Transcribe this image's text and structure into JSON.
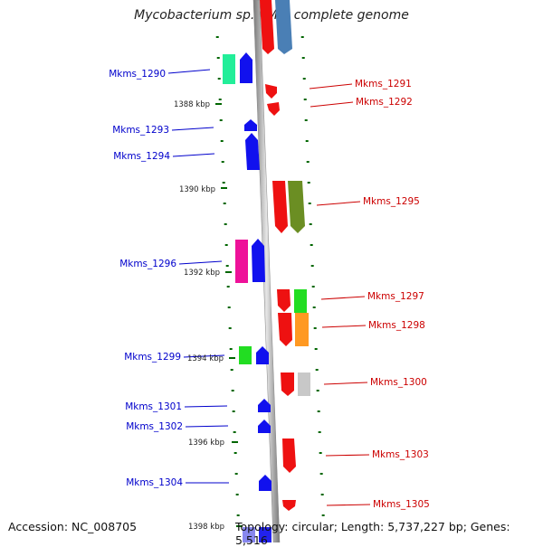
{
  "title": "Mycobacterium sp. KMS, complete genome",
  "footer": {
    "accession": "Accession: NC_008705",
    "summary": "Topology: circular; Length: 5,737,227 bp; Genes: 5,516"
  },
  "colors": {
    "left_label": "#0000cc",
    "right_label": "#cc0000",
    "tick": "#006600",
    "backbone": "#999999"
  },
  "scale_labels": [
    "1388 kbp",
    "1390 kbp",
    "1392 kbp",
    "1394 kbp",
    "1396 kbp",
    "1398 kbp"
  ],
  "left_genes": [
    "Mkms_1290",
    "Mkms_1293",
    "Mkms_1294",
    "Mkms_1296",
    "Mkms_1299",
    "Mkms_1301",
    "Mkms_1302",
    "Mkms_1304"
  ],
  "right_genes": [
    "Mkms_1291",
    "Mkms_1292",
    "Mkms_1295",
    "Mkms_1297",
    "Mkms_1298",
    "Mkms_1300",
    "Mkms_1303",
    "Mkms_1305"
  ]
}
